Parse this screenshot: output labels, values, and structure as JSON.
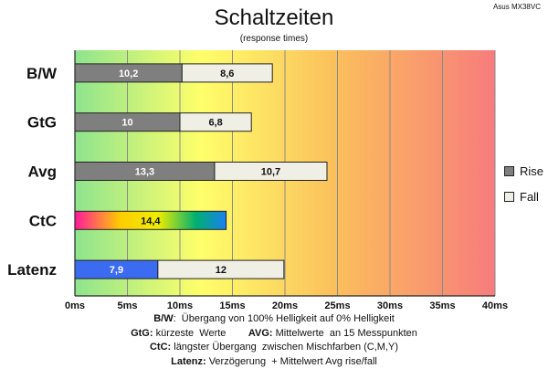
{
  "watermark": "Asus MX38VC",
  "chart_data": {
    "type": "bar",
    "orientation": "horizontal",
    "stacked": true,
    "title": "Schaltzeiten",
    "subtitle": "(response times)",
    "xlim": [
      0,
      40
    ],
    "x_ticks": [
      "0ms",
      "5ms",
      "10ms",
      "15ms",
      "20ms",
      "25ms",
      "30ms",
      "35ms",
      "40ms"
    ],
    "grid": true,
    "legend_position": "right",
    "categories": [
      "B/W",
      "GtG",
      "Avg",
      "CtC",
      "Latenz"
    ],
    "series": [
      {
        "name": "Rise",
        "color": "#7f7f7f",
        "values": [
          10.2,
          10,
          13.3,
          null,
          7.9
        ],
        "labels": [
          "10,2",
          "10",
          "13,3",
          "",
          "7,9"
        ]
      },
      {
        "name": "Fall",
        "color": "#efefe6",
        "values": [
          8.6,
          6.8,
          10.7,
          null,
          12
        ],
        "labels": [
          "8,6",
          "6,8",
          "10,7",
          "",
          "12"
        ]
      },
      {
        "name": "",
        "values": [
          null,
          null,
          null,
          14.4,
          null
        ],
        "labels": [
          "",
          "",
          "",
          "14,4",
          ""
        ]
      }
    ],
    "latency_rise_color": "#3b6bf0"
  },
  "notes": [
    {
      "parts": [
        {
          "b": "B/W"
        },
        {
          "t": ":  Übergang von 100% Helligkeit auf 0% Helligkeit"
        }
      ]
    },
    {
      "parts": [
        {
          "b": "GtG:"
        },
        {
          "t": " kürzeste  Werte        "
        },
        {
          "b": "AVG:"
        },
        {
          "t": " Mittelwerte  an 15 Messpunkten"
        }
      ]
    },
    {
      "parts": [
        {
          "b": "CtC:"
        },
        {
          "t": " längster Übergang  zwischen Mischfarben (C,M,Y)"
        }
      ]
    },
    {
      "parts": [
        {
          "b": "Latenz:"
        },
        {
          "t": " Verzögerung  + Mittelwert Avg rise/fall"
        }
      ]
    }
  ]
}
